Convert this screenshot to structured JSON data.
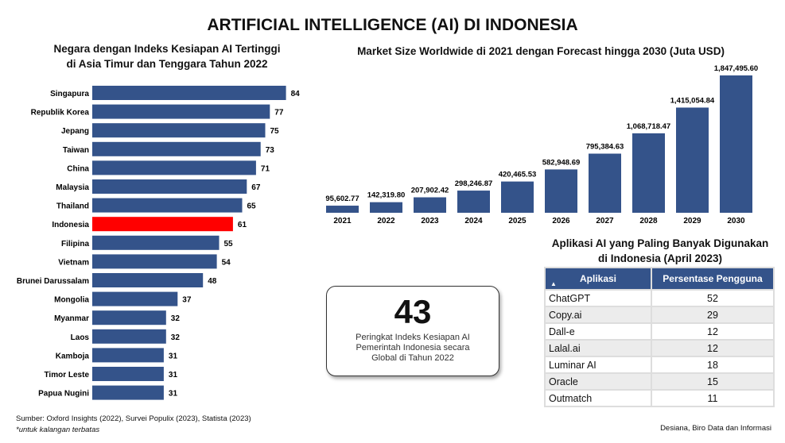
{
  "title": "ARTIFICIAL INTELLIGENCE (AI) DI INDONESIA",
  "chart_data": [
    {
      "type": "bar",
      "orientation": "horizontal",
      "title": "Negara dengan Indeks Kesiapan AI Tertinggi di Asia Timur dan Tenggara Tahun 2022",
      "title_lines": [
        "Negara dengan Indeks Kesiapan AI Tertinggi",
        "di Asia Timur dan Tenggara Tahun 2022"
      ],
      "categories": [
        "Singapura",
        "Republik Korea",
        "Jepang",
        "Taiwan",
        "China",
        "Malaysia",
        "Thailand",
        "Indonesia",
        "Filipina",
        "Vietnam",
        "Brunei Darussalam",
        "Mongolia",
        "Myanmar",
        "Laos",
        "Kamboja",
        "Timor Leste",
        "Papua Nugini"
      ],
      "values": [
        84,
        77,
        75,
        73,
        71,
        67,
        65,
        61,
        55,
        54,
        48,
        37,
        32,
        32,
        31,
        31,
        31
      ],
      "highlight": "Indonesia",
      "bar_color": "#34538a",
      "highlight_color": "#ff0000"
    },
    {
      "type": "bar",
      "title": "Market Size Worldwide di 2021 dengan Forecast hingga 2030 (Juta USD)",
      "categories": [
        "2021",
        "2022",
        "2023",
        "2024",
        "2025",
        "2026",
        "2027",
        "2028",
        "2029",
        "2030"
      ],
      "values": [
        95602.77,
        142319.8,
        207902.42,
        298246.87,
        420465.53,
        582948.69,
        795384.63,
        1068718.47,
        1415054.84,
        1847495.6
      ],
      "labels": [
        "95,602.77",
        "142,319.80",
        "207,902.42",
        "298,246.87",
        "420,465.53",
        "582,948.69",
        "795,384.63",
        "1,068,718.47",
        "1,415,054.84",
        "1,847,495.60"
      ],
      "bar_color": "#34538a"
    }
  ],
  "highlight_box": {
    "number": "43",
    "text": "Peringkat Indeks Kesiapan AI Pemerintah Indonesia secara Global di Tahun 2022"
  },
  "table": {
    "title_lines": [
      "Aplikasi AI yang Paling Banyak Digunakan",
      "di Indonesia (April 2023)"
    ],
    "headers": [
      "Aplikasi",
      "Persentase Pengguna"
    ],
    "rows": [
      [
        "ChatGPT",
        "52"
      ],
      [
        "Copy.ai",
        "29"
      ],
      [
        "Dall-e",
        "12"
      ],
      [
        "Lalal.ai",
        "12"
      ],
      [
        "Luminar AI",
        "18"
      ],
      [
        "Oracle",
        "15"
      ],
      [
        "Outmatch",
        "11"
      ]
    ]
  },
  "footer": {
    "source": "Sumber: Oxford Insights (2022), Survei Populix (2023), Statista (2023)",
    "note": "*untuk kalangan terbatas",
    "credit": "Desiana, Biro Data dan Informasi"
  }
}
